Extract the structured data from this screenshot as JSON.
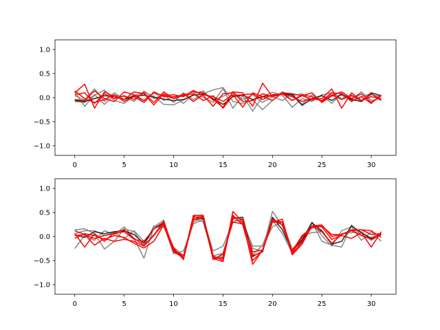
{
  "chart_data": [
    {
      "type": "line",
      "xlim": [
        -2,
        32.5
      ],
      "ylim": [
        -1.2,
        1.2
      ],
      "xticks": [
        0,
        5,
        10,
        15,
        20,
        25,
        30
      ],
      "xtick_labels": [
        "0",
        "5",
        "10",
        "15",
        "20",
        "25",
        "30"
      ],
      "yticks": [
        -1.0,
        -0.5,
        0.0,
        0.5,
        1.0
      ],
      "ytick_labels": [
        "−1.0",
        "−0.5",
        "0.0",
        "0.5",
        "1.0"
      ],
      "grid": false,
      "colors": {
        "gray": "#7f7f7f",
        "black": "#1a1a1a",
        "red": "#ff0000"
      },
      "series": [
        {
          "color": "gray",
          "values": [
            0.12,
            -0.18,
            0.05,
            0.16,
            -0.06,
            -0.12,
            0.04,
            0.11,
            0.03,
            -0.14,
            -0.15,
            -0.05,
            0.06,
            0.01,
            -0.1,
            0.19,
            -0.22,
            0.04,
            -0.28,
            0.02,
            0.11,
            0.05,
            -0.2,
            -0.02,
            -0.08,
            0.05,
            -0.12,
            0.09,
            -0.04,
            0.12,
            -0.06,
            -0.02
          ]
        },
        {
          "color": "gray",
          "values": [
            -0.08,
            -0.1,
            0.06,
            -0.14,
            0.05,
            0.02,
            -0.08,
            0.14,
            -0.02,
            0.06,
            -0.1,
            0.1,
            -0.04,
            0.08,
            0.16,
            0.21,
            -0.08,
            -0.12,
            -0.05,
            -0.25,
            -0.06,
            0.12,
            0.04,
            0.08,
            -0.06,
            0.06,
            0.1,
            -0.02,
            0.06,
            -0.08,
            0.06,
            0.02
          ]
        },
        {
          "color": "gray",
          "values": [
            0.04,
            -0.05,
            0.18,
            -0.08,
            0.1,
            -0.04,
            0.06,
            -0.1,
            0.12,
            -0.06,
            0.02,
            -0.12,
            0.08,
            0.14,
            -0.06,
            0.03,
            0.12,
            -0.04,
            0.06,
            -0.1,
            0.02,
            -0.06,
            0.08,
            -0.14,
            0.06,
            -0.08,
            0.03,
            0.05,
            -0.06,
            0.02,
            0.08,
            -0.04
          ]
        },
        {
          "color": "black",
          "values": [
            -0.06,
            -0.08,
            -0.02,
            0.04,
            0.02,
            -0.04,
            0.03,
            0.05,
            0.01,
            -0.03,
            -0.06,
            -0.04,
            0.05,
            0.08,
            -0.02,
            -0.14,
            0.02,
            0.05,
            -0.04,
            0.02,
            0.05,
            0.08,
            0.06,
            -0.16,
            -0.02,
            0.04,
            -0.06,
            0.07,
            -0.04,
            -0.08,
            0.1,
            0.04
          ]
        },
        {
          "color": "red",
          "values": [
            0.1,
            0.28,
            -0.22,
            0.12,
            0.02,
            -0.04,
            0.12,
            0.08,
            -0.15,
            0.08,
            -0.02,
            0.05,
            0.12,
            0.1,
            -0.04,
            -0.2,
            0.12,
            0.1,
            -0.18,
            0.3,
            0.02,
            0.08,
            -0.06,
            0.04,
            -0.04,
            -0.02,
            0.18,
            -0.22,
            0.1,
            -0.06,
            0.08,
            -0.06
          ]
        },
        {
          "color": "red",
          "values": [
            -0.04,
            -0.06,
            0.14,
            -0.02,
            -0.08,
            0.12,
            0.06,
            -0.06,
            0.1,
            0.04,
            0.06,
            0.02,
            0.15,
            0.05,
            -0.18,
            0.08,
            0.1,
            -0.08,
            -0.06,
            0.08,
            0.02,
            0.1,
            0.08,
            0.04,
            0.1,
            -0.1,
            0.04,
            0.12,
            -0.02,
            0.08,
            -0.1,
            0.04
          ]
        },
        {
          "color": "red",
          "values": [
            0.14,
            -0.02,
            -0.1,
            -0.04,
            0.06,
            -0.08,
            0.02,
            -0.1,
            0.12,
            0.02,
            0.02,
            0.04,
            0.08,
            -0.06,
            0.04,
            -0.22,
            0.04,
            0.06,
            0.08,
            -0.04,
            0.06,
            0.08,
            0.02,
            -0.08,
            -0.02,
            -0.06,
            0.1,
            0.08,
            -0.08,
            0.02,
            -0.12,
            0.06
          ]
        },
        {
          "color": "red",
          "values": [
            0.06,
            0.1,
            -0.12,
            0.08,
            -0.02,
            0.04,
            -0.04,
            0.1,
            -0.1,
            0.12,
            -0.02,
            0.08,
            -0.08,
            0.06,
            0.02,
            -0.08,
            0.06,
            -0.2,
            0.1,
            0.02,
            -0.06,
            0.1,
            -0.06,
            0.06,
            0.02,
            -0.08,
            0.06,
            -0.04,
            0.04,
            -0.06,
            0.02,
            -0.02
          ]
        }
      ]
    },
    {
      "type": "line",
      "xlim": [
        -2,
        32.5
      ],
      "ylim": [
        -1.2,
        1.2
      ],
      "xticks": [
        0,
        5,
        10,
        15,
        20,
        25,
        30
      ],
      "xtick_labels": [
        "0",
        "5",
        "10",
        "15",
        "20",
        "25",
        "30"
      ],
      "yticks": [
        -1.0,
        -0.5,
        0.0,
        0.5,
        1.0
      ],
      "ytick_labels": [
        "−1.0",
        "−0.5",
        "0.0",
        "0.5",
        "1.0"
      ],
      "grid": false,
      "colors": {
        "gray": "#7f7f7f",
        "black": "#1a1a1a",
        "red": "#ff0000"
      },
      "series": [
        {
          "color": "gray",
          "values": [
            -0.25,
            0.02,
            -0.08,
            0.12,
            0.04,
            0.2,
            -0.04,
            -0.45,
            0.2,
            0.34,
            -0.3,
            -0.44,
            0.38,
            0.3,
            -0.4,
            -0.35,
            0.36,
            0.28,
            -0.25,
            -0.3,
            0.52,
            0.22,
            -0.3,
            -0.1,
            0.3,
            -0.1,
            -0.18,
            -0.22,
            0.24,
            0.02,
            -0.02,
            0.06
          ]
        },
        {
          "color": "gray",
          "values": [
            0.14,
            0.16,
            0.06,
            -0.26,
            -0.1,
            0.16,
            0.1,
            -0.2,
            0.22,
            0.2,
            -0.22,
            -0.4,
            0.3,
            0.4,
            -0.45,
            -0.4,
            0.4,
            0.3,
            -0.2,
            -0.2,
            0.2,
            0.3,
            -0.26,
            -0.06,
            0.3,
            0.02,
            -0.2,
            0.12,
            0.2,
            -0.08,
            0.1,
            -0.1
          ]
        },
        {
          "color": "gray",
          "values": [
            0.06,
            0.12,
            0.12,
            0.02,
            0.08,
            -0.04,
            0.12,
            -0.1,
            0.04,
            0.24,
            -0.36,
            -0.3,
            0.26,
            0.36,
            -0.3,
            -0.2,
            0.3,
            0.36,
            -0.38,
            -0.18,
            0.34,
            0.06,
            -0.34,
            0.02,
            0.08,
            0.1,
            -0.16,
            0.06,
            0.08,
            0.1,
            -0.08,
            0.04
          ]
        },
        {
          "color": "black",
          "values": [
            0.04,
            -0.02,
            0.1,
            0.06,
            0.1,
            0.12,
            0.04,
            -0.14,
            0.16,
            0.3,
            -0.26,
            -0.44,
            0.42,
            0.36,
            -0.46,
            -0.44,
            0.38,
            0.4,
            -0.4,
            -0.32,
            0.4,
            0.14,
            -0.3,
            -0.08,
            0.28,
            0.12,
            -0.16,
            -0.1,
            0.22,
            0.08,
            -0.04,
            0.04
          ]
        },
        {
          "color": "red",
          "values": [
            0.12,
            0.04,
            -0.18,
            -0.04,
            -0.1,
            -0.06,
            -0.1,
            -0.2,
            0.02,
            0.28,
            -0.24,
            -0.48,
            0.4,
            0.42,
            -0.4,
            -0.5,
            0.52,
            0.3,
            -0.58,
            -0.28,
            0.3,
            0.36,
            -0.36,
            -0.12,
            0.22,
            0.2,
            -0.06,
            0.02,
            -0.04,
            0.08,
            -0.22,
            0.1
          ]
        },
        {
          "color": "red",
          "values": [
            0.06,
            -0.22,
            0.06,
            -0.1,
            0.08,
            0.14,
            -0.04,
            -0.18,
            0.02,
            0.32,
            -0.3,
            -0.44,
            0.34,
            0.4,
            -0.48,
            -0.36,
            0.3,
            0.26,
            -0.32,
            -0.28,
            0.34,
            0.3,
            -0.34,
            -0.02,
            0.22,
            0.24,
            0.0,
            0.04,
            0.14,
            0.14,
            0.12,
            -0.02
          ]
        },
        {
          "color": "red",
          "values": [
            -0.04,
            0.06,
            0.02,
            -0.06,
            0.02,
            -0.02,
            -0.14,
            -0.24,
            -0.1,
            0.24,
            -0.32,
            -0.44,
            0.44,
            0.44,
            -0.46,
            -0.52,
            0.44,
            0.24,
            -0.5,
            -0.3,
            0.3,
            0.3,
            -0.38,
            -0.16,
            0.22,
            0.1,
            -0.14,
            0.04,
            0.12,
            0.02,
            -0.06,
            0.06
          ]
        },
        {
          "color": "red",
          "values": [
            0.02,
            0.04,
            -0.04,
            0.02,
            0.06,
            0.1,
            -0.06,
            -0.1,
            0.16,
            0.26,
            -0.28,
            -0.4,
            0.36,
            0.4,
            -0.42,
            -0.46,
            0.4,
            0.36,
            -0.42,
            -0.3,
            0.36,
            0.24,
            -0.3,
            0.02,
            0.18,
            0.22,
            0.04,
            0.04,
            0.12,
            0.14,
            0.04,
            0.06
          ]
        }
      ]
    }
  ]
}
